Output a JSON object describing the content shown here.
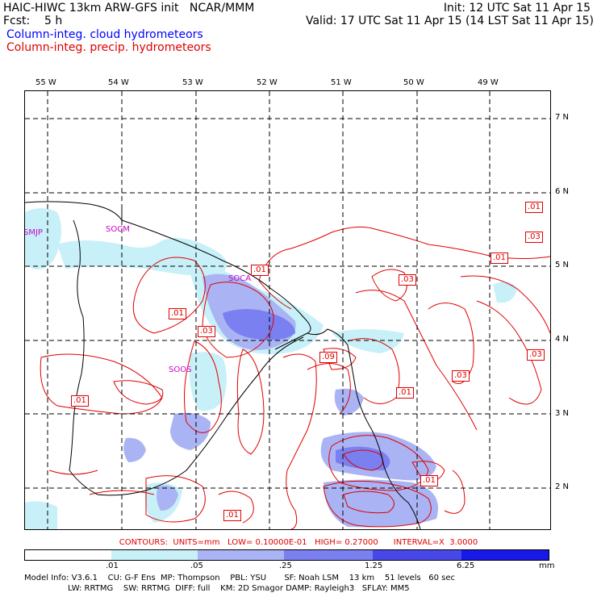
{
  "header": {
    "line1_left": "HAIC-HIWC 13km ARW-GFS init   NCAR/MMM",
    "line1_right": "Init: 12 UTC Sat 11 Apr 15",
    "line2_left": "Fcst:    5 h",
    "line2_right": "Valid: 17 UTC Sat 11 Apr 15 (14 LST Sat 11 Apr 15)",
    "legend_blue": "Column-integ. cloud hydrometeors",
    "legend_red": "Column-integ. precip. hydrometeors"
  },
  "longitudes": [
    "55 W",
    "54 W",
    "53 W",
    "52 W",
    "51 W",
    "50 W",
    "49 W"
  ],
  "latitudes": [
    "7 N",
    "6 N",
    "5 N",
    "4 N",
    "3 N",
    "2 N"
  ],
  "stations": [
    "SMJP",
    "SOCM",
    "SOCA",
    "SOOS"
  ],
  "contour_labels": [
    ".01",
    ".03",
    ".01",
    ".03",
    ".01",
    ".03",
    ".09",
    ".01",
    ".03",
    ".01",
    ".01",
    ".01",
    ".01",
    ".03"
  ],
  "contour_info": "CONTOURS:  UNITS=mm   LOW= 0.10000E-01   HIGH= 0.27000      INTERVAL=X  3.0000",
  "colorbar": {
    "labels": [
      ".01",
      ".05",
      ".25",
      "1.25",
      "6.25"
    ],
    "unit": "mm",
    "colors": [
      "#ffffff",
      "#c8f0f8",
      "#aab4f4",
      "#7a80f0",
      "#4848e8",
      "#1818e8"
    ]
  },
  "model_info": {
    "line1": "Model Info: V3.6.1    CU: G-F Ens  MP: Thompson    PBL: YSU       SF: Noah LSM    13 km    51 levels   60 sec",
    "line2": "                 LW: RRTMG    SW: RRTMG  DIFF: full    KM: 2D Smagor DAMP: Rayleigh3   SFLAY: MM5"
  }
}
